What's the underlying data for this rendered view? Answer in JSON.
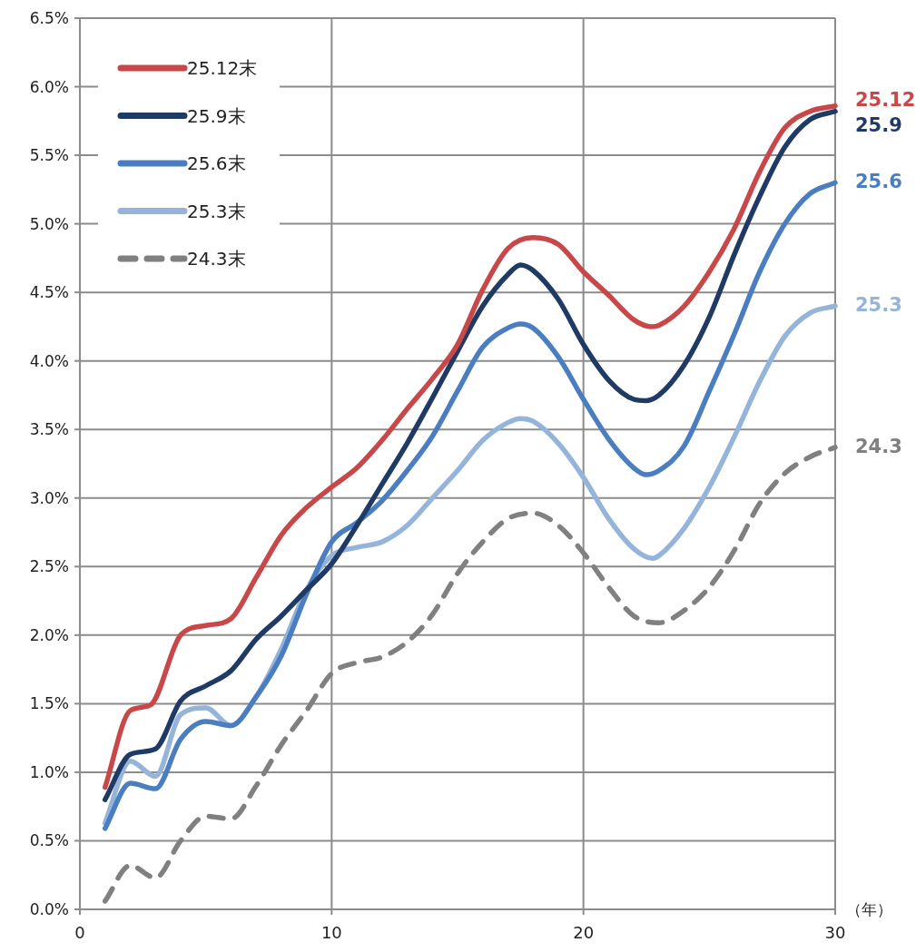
{
  "chart_data": {
    "type": "line",
    "xlabel": "（年）",
    "xlim": [
      0,
      30
    ],
    "xticks": [
      0,
      10,
      20,
      30
    ],
    "ylim": [
      0,
      6.5
    ],
    "yticks": [
      {
        "value": 0,
        "label": "0.0%"
      },
      {
        "value": 0.5,
        "label": "0.5%"
      },
      {
        "value": 1,
        "label": "1.0%"
      },
      {
        "value": 1.5,
        "label": "1.5%"
      },
      {
        "value": 2,
        "label": "2.0%"
      },
      {
        "value": 2.5,
        "label": "2.5%"
      },
      {
        "value": 3,
        "label": "3.0%"
      },
      {
        "value": 3.5,
        "label": "3.5%"
      },
      {
        "value": 4,
        "label": "4.0%"
      },
      {
        "value": 4.5,
        "label": "4.5%"
      },
      {
        "value": 5,
        "label": "5.0%"
      },
      {
        "value": 5.5,
        "label": "5.5%"
      },
      {
        "value": 6,
        "label": "6.0%"
      },
      {
        "value": 6.5,
        "label": "6.5%"
      }
    ],
    "grid": true,
    "legend": "top left",
    "series": [
      {
        "name": "25.12末",
        "color": "#c8484a",
        "line_style": "solid",
        "x": [
          1,
          2,
          2.8,
          4,
          5,
          6,
          7,
          8,
          9,
          10,
          11,
          12,
          13,
          14,
          15,
          16,
          17,
          18,
          19,
          20,
          21,
          22,
          22.7,
          23,
          24,
          25,
          26,
          27,
          28,
          29,
          30
        ],
        "values": [
          0.89,
          1.45,
          1.49,
          2.0,
          2.07,
          2.12,
          2.42,
          2.73,
          2.93,
          3.08,
          3.22,
          3.42,
          3.65,
          3.87,
          4.12,
          4.52,
          4.82,
          4.9,
          4.85,
          4.65,
          4.48,
          4.3,
          4.25,
          4.26,
          4.4,
          4.65,
          4.97,
          5.38,
          5.7,
          5.82,
          5.86
        ]
      },
      {
        "name": "25.9末",
        "color": "#1f3a64",
        "line_style": "solid",
        "x": [
          1,
          2,
          3,
          4,
          5,
          6,
          7,
          8,
          9,
          10,
          11,
          12,
          13,
          14,
          15,
          16,
          17,
          17.5,
          18,
          19,
          20,
          21,
          22,
          22.5,
          23,
          24,
          25,
          26,
          27,
          28,
          29,
          30
        ],
        "values": [
          0.8,
          1.13,
          1.17,
          1.52,
          1.63,
          1.74,
          1.97,
          2.14,
          2.33,
          2.52,
          2.8,
          3.1,
          3.4,
          3.73,
          4.07,
          4.4,
          4.63,
          4.7,
          4.66,
          4.45,
          4.12,
          3.86,
          3.72,
          3.71,
          3.75,
          3.97,
          4.32,
          4.78,
          5.2,
          5.56,
          5.76,
          5.82
        ]
      },
      {
        "name": "25.6末",
        "color": "#4a7ec0",
        "line_style": "solid",
        "x": [
          1,
          2,
          3,
          4,
          5,
          6,
          7,
          8,
          9,
          10,
          11,
          12,
          13,
          14,
          15,
          16,
          17,
          17.5,
          18,
          19,
          20,
          21,
          22,
          22.5,
          23,
          24,
          25,
          26,
          27,
          28,
          29,
          30
        ],
        "values": [
          0.59,
          0.92,
          0.88,
          1.24,
          1.37,
          1.34,
          1.55,
          1.85,
          2.3,
          2.68,
          2.82,
          2.98,
          3.2,
          3.45,
          3.78,
          4.1,
          4.24,
          4.27,
          4.24,
          4.03,
          3.72,
          3.43,
          3.22,
          3.17,
          3.2,
          3.38,
          3.78,
          4.2,
          4.65,
          5.0,
          5.22,
          5.3
        ]
      },
      {
        "name": "25.3末",
        "color": "#95b4da",
        "line_style": "solid",
        "x": [
          1,
          2,
          3,
          4,
          5,
          6,
          7,
          8,
          9,
          10,
          11,
          12,
          13,
          14,
          15,
          16,
          17,
          17.5,
          18,
          19,
          20,
          21,
          22,
          22.75,
          23,
          24,
          25,
          26,
          27,
          28,
          29,
          30
        ],
        "values": [
          0.63,
          1.08,
          0.97,
          1.42,
          1.47,
          1.34,
          1.55,
          1.9,
          2.33,
          2.58,
          2.64,
          2.68,
          2.8,
          3.0,
          3.2,
          3.42,
          3.55,
          3.58,
          3.56,
          3.4,
          3.15,
          2.85,
          2.63,
          2.56,
          2.58,
          2.78,
          3.08,
          3.45,
          3.85,
          4.18,
          4.35,
          4.4
        ]
      },
      {
        "name": "24.3末",
        "color": "#808080",
        "line_style": "dashed",
        "x": [
          1,
          2,
          3,
          4,
          5,
          6,
          7,
          8,
          9,
          10,
          11,
          12,
          13,
          14,
          15,
          16,
          17,
          18,
          19,
          20,
          21,
          22,
          23,
          24,
          25,
          26,
          27,
          28,
          29,
          30
        ],
        "values": [
          0.06,
          0.32,
          0.23,
          0.5,
          0.68,
          0.66,
          0.9,
          1.2,
          1.45,
          1.72,
          1.8,
          1.84,
          1.95,
          2.15,
          2.45,
          2.68,
          2.85,
          2.89,
          2.8,
          2.6,
          2.35,
          2.14,
          2.09,
          2.18,
          2.35,
          2.62,
          2.96,
          3.18,
          3.3,
          3.37
        ]
      }
    ],
    "annotations": [
      "25.12",
      "25.9",
      "25.6",
      "25.3",
      "24.3"
    ]
  }
}
